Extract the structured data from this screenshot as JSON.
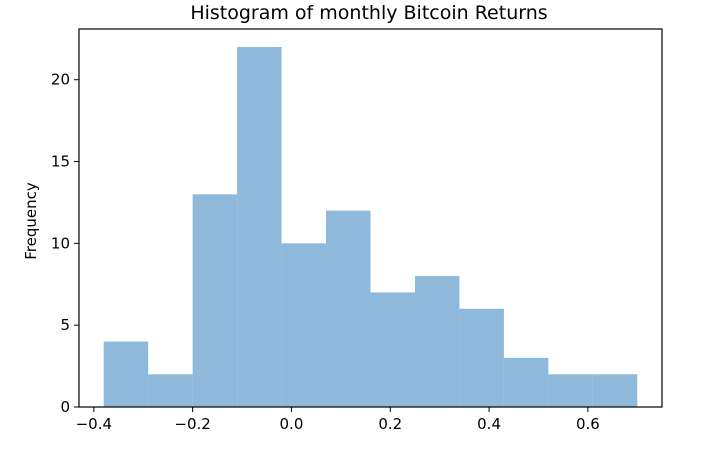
{
  "chart_data": {
    "type": "histogram",
    "title": "Histogram of monthly Bitcoin Returns",
    "xlabel": "",
    "ylabel": "Frequency",
    "xlim": [
      -0.43,
      0.75
    ],
    "ylim": [
      0,
      23.1
    ],
    "bins": [
      {
        "start": -0.38,
        "end": -0.29,
        "count": 4
      },
      {
        "start": -0.29,
        "end": -0.2,
        "count": 2
      },
      {
        "start": -0.2,
        "end": -0.11,
        "count": 13
      },
      {
        "start": -0.11,
        "end": -0.02,
        "count": 22
      },
      {
        "start": -0.02,
        "end": 0.07,
        "count": 10
      },
      {
        "start": 0.07,
        "end": 0.16,
        "count": 12
      },
      {
        "start": 0.16,
        "end": 0.25,
        "count": 7
      },
      {
        "start": 0.25,
        "end": 0.34,
        "count": 8
      },
      {
        "start": 0.34,
        "end": 0.43,
        "count": 6
      },
      {
        "start": 0.43,
        "end": 0.52,
        "count": 3
      },
      {
        "start": 0.52,
        "end": 0.61,
        "count": 2
      },
      {
        "start": 0.61,
        "end": 0.7,
        "count": 2
      }
    ],
    "xticks": [
      {
        "value": -0.4,
        "label": "−0.4"
      },
      {
        "value": -0.2,
        "label": "−0.2"
      },
      {
        "value": 0.0,
        "label": "0.0"
      },
      {
        "value": 0.2,
        "label": "0.2"
      },
      {
        "value": 0.4,
        "label": "0.4"
      },
      {
        "value": 0.6,
        "label": "0.6"
      }
    ],
    "yticks": [
      {
        "value": 0,
        "label": "0"
      },
      {
        "value": 5,
        "label": "5"
      },
      {
        "value": 10,
        "label": "10"
      },
      {
        "value": 15,
        "label": "15"
      },
      {
        "value": 20,
        "label": "20"
      }
    ],
    "bar_color": "#8fb9da",
    "grid": false,
    "legend": "none"
  }
}
